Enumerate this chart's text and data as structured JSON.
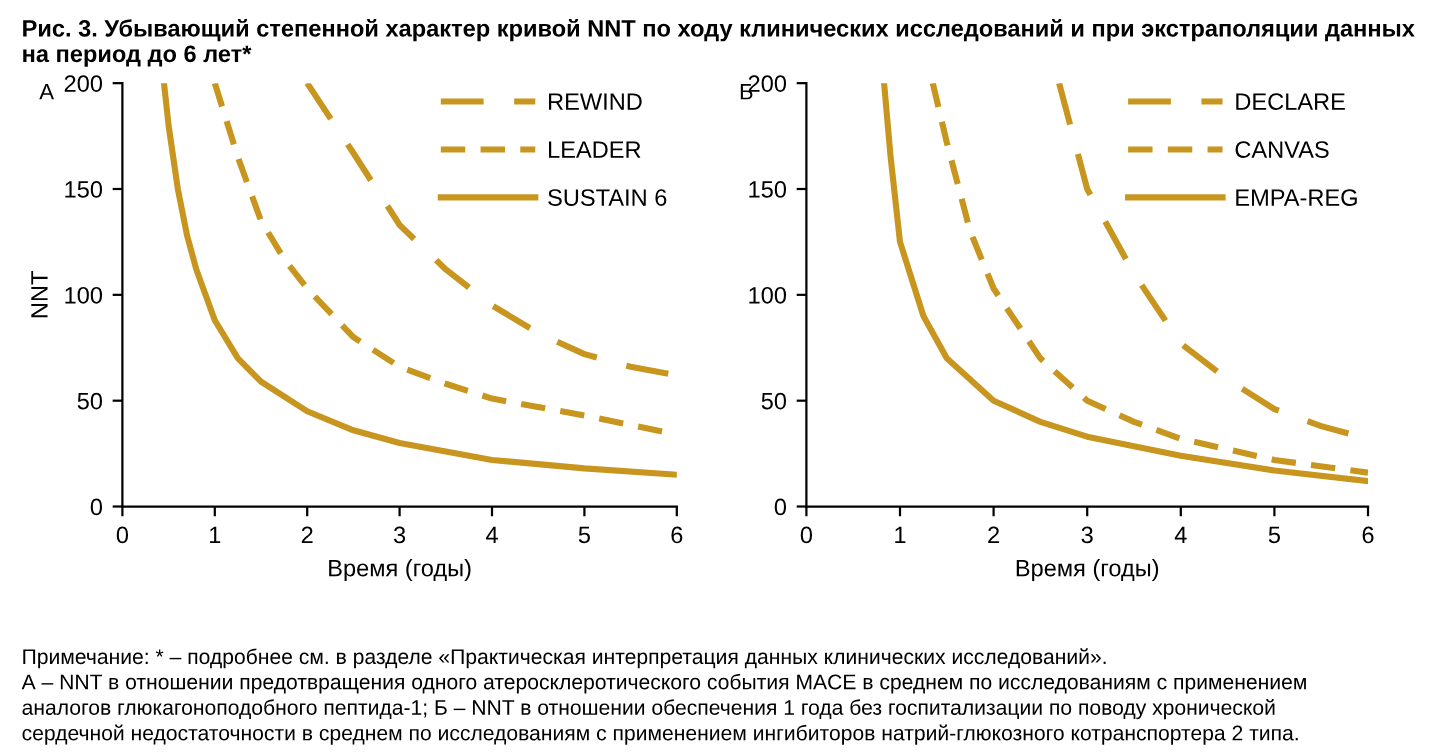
{
  "chart_data": [
    {
      "type": "line",
      "title": "Рис. 3. Убывающий степенной характер кривой NNT по ходу клинических исследований и при экстраполяции данных на период до 6 лет*",
      "xlabel": "Время (годы)",
      "ylabel": "NNT",
      "xlim": [
        0,
        6
      ],
      "ylim": [
        0,
        200
      ],
      "xticks": [
        0,
        1,
        2,
        3,
        4,
        5,
        6
      ],
      "yticks": [
        0,
        50,
        100,
        150,
        200
      ],
      "grid": false,
      "legend": "top right",
      "marker": "none",
      "annotations": [
        "А",
        "Примечание: * – подробнее см. в разделе «Практическая интерпретация данных клинических исследований».\nА – NNT в отношении предотвращения одного атеросклеротического события MACE в среднем по исследованиям с применением\nаналогов глюкагоноподобного пептида-1; Б – NNT в отношении обеспечения 1 года без госпитализации по поводу хронической\nсердечной недостаточности в среднем по исследованиям с применением ингибиторов натрий-глюкозного котранспортера 2 типа."
      ],
      "series": [
        {
          "name": "REWIND",
          "color": "#c8961e",
          "line_style": "loosely dashed",
          "x": [
            2,
            2.5,
            3,
            3.5,
            4,
            4.5,
            5,
            5.5,
            6
          ],
          "values": [
            200,
            167,
            133,
            112,
            95,
            82,
            72,
            66,
            62
          ]
        },
        {
          "name": "LEADER",
          "color": "#c8961e",
          "line_style": "dashed",
          "x": [
            1,
            1.25,
            1.5,
            1.75,
            2,
            2.5,
            3,
            3.5,
            4,
            5,
            6
          ],
          "values": [
            200,
            165,
            135,
            117,
            103,
            80,
            66,
            58,
            51,
            43,
            34
          ]
        },
        {
          "name": "SUSTAIN 6",
          "color": "#c8961e",
          "line_style": "solid",
          "x": [
            0.45,
            0.5,
            0.6,
            0.7,
            0.8,
            1,
            1.25,
            1.5,
            2,
            2.5,
            3,
            4,
            5,
            6
          ],
          "values": [
            200,
            180,
            150,
            128,
            112,
            88,
            70,
            59,
            45,
            36,
            30,
            22,
            18,
            15
          ]
        }
      ]
    },
    {
      "type": "line",
      "xlabel": "Время (годы)",
      "xlim": [
        0,
        6
      ],
      "ylim": [
        0,
        200
      ],
      "xticks": [
        0,
        1,
        2,
        3,
        4,
        5,
        6
      ],
      "yticks": [
        0,
        50,
        100,
        150,
        200
      ],
      "grid": false,
      "legend": "top right",
      "marker": "none",
      "annotations": [
        "Б"
      ],
      "series": [
        {
          "name": "DECLARE",
          "color": "#c8961e",
          "line_style": "loosely dashed",
          "x": [
            2.7,
            3,
            3.5,
            4,
            4.5,
            5,
            5.5,
            6
          ],
          "values": [
            200,
            150,
            110,
            77,
            60,
            46,
            38,
            32
          ]
        },
        {
          "name": "CANVAS",
          "color": "#c8961e",
          "line_style": "dashed",
          "x": [
            1.35,
            1.5,
            1.75,
            2,
            2.5,
            3,
            3.5,
            4,
            5,
            6
          ],
          "values": [
            200,
            172,
            130,
            103,
            70,
            50,
            40,
            32,
            22,
            16
          ]
        },
        {
          "name": "EMPA-REG",
          "color": "#c8961e",
          "line_style": "solid",
          "x": [
            0.83,
            0.9,
            1,
            1.25,
            1.5,
            2,
            2.5,
            3,
            4,
            5,
            6
          ],
          "values": [
            200,
            165,
            125,
            90,
            70,
            50,
            40,
            33,
            24,
            17,
            12
          ]
        }
      ]
    }
  ]
}
